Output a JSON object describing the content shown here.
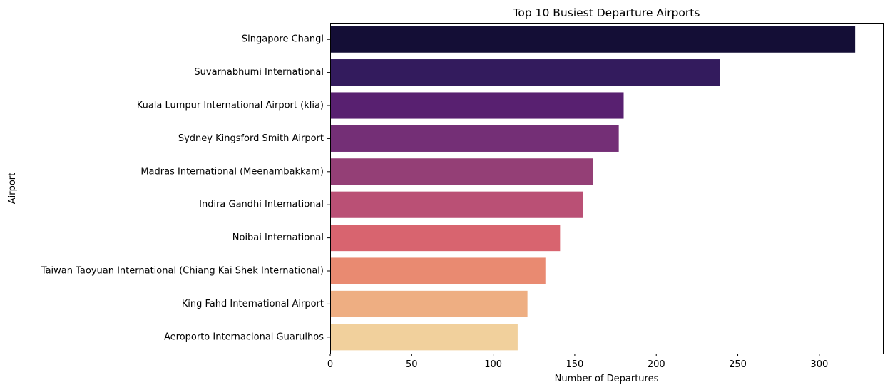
{
  "chart_data": {
    "type": "bar",
    "orientation": "horizontal",
    "title": "Top 10 Busiest Departure Airports",
    "xlabel": "Number of Departures",
    "ylabel": "Airport",
    "xlim": [
      0,
      339
    ],
    "xticks": [
      0,
      50,
      100,
      150,
      200,
      250,
      300
    ],
    "xtick_labels": [
      "0",
      "50",
      "100",
      "150",
      "200",
      "250",
      "300"
    ],
    "grid": false,
    "legend": "none",
    "categories": [
      "Singapore Changi",
      "Suvarnabhumi International",
      "Kuala Lumpur International Airport (klia)",
      "Sydney Kingsford Smith Airport",
      "Madras International (Meenambakkam)",
      "Indira Gandhi International",
      "Noibai International",
      "Taiwan Taoyuan International (Chiang Kai Shek International)",
      "King Fahd International Airport",
      "Aeroporto Internacional Guarulhos"
    ],
    "values": [
      322,
      239,
      180,
      177,
      161,
      155,
      141,
      132,
      121,
      115
    ],
    "colors": [
      "#140e36",
      "#331b5d",
      "#582070",
      "#742f76",
      "#943f76",
      "#ba5075",
      "#d8646f",
      "#e98a71",
      "#eeae82",
      "#f1d09c"
    ]
  }
}
